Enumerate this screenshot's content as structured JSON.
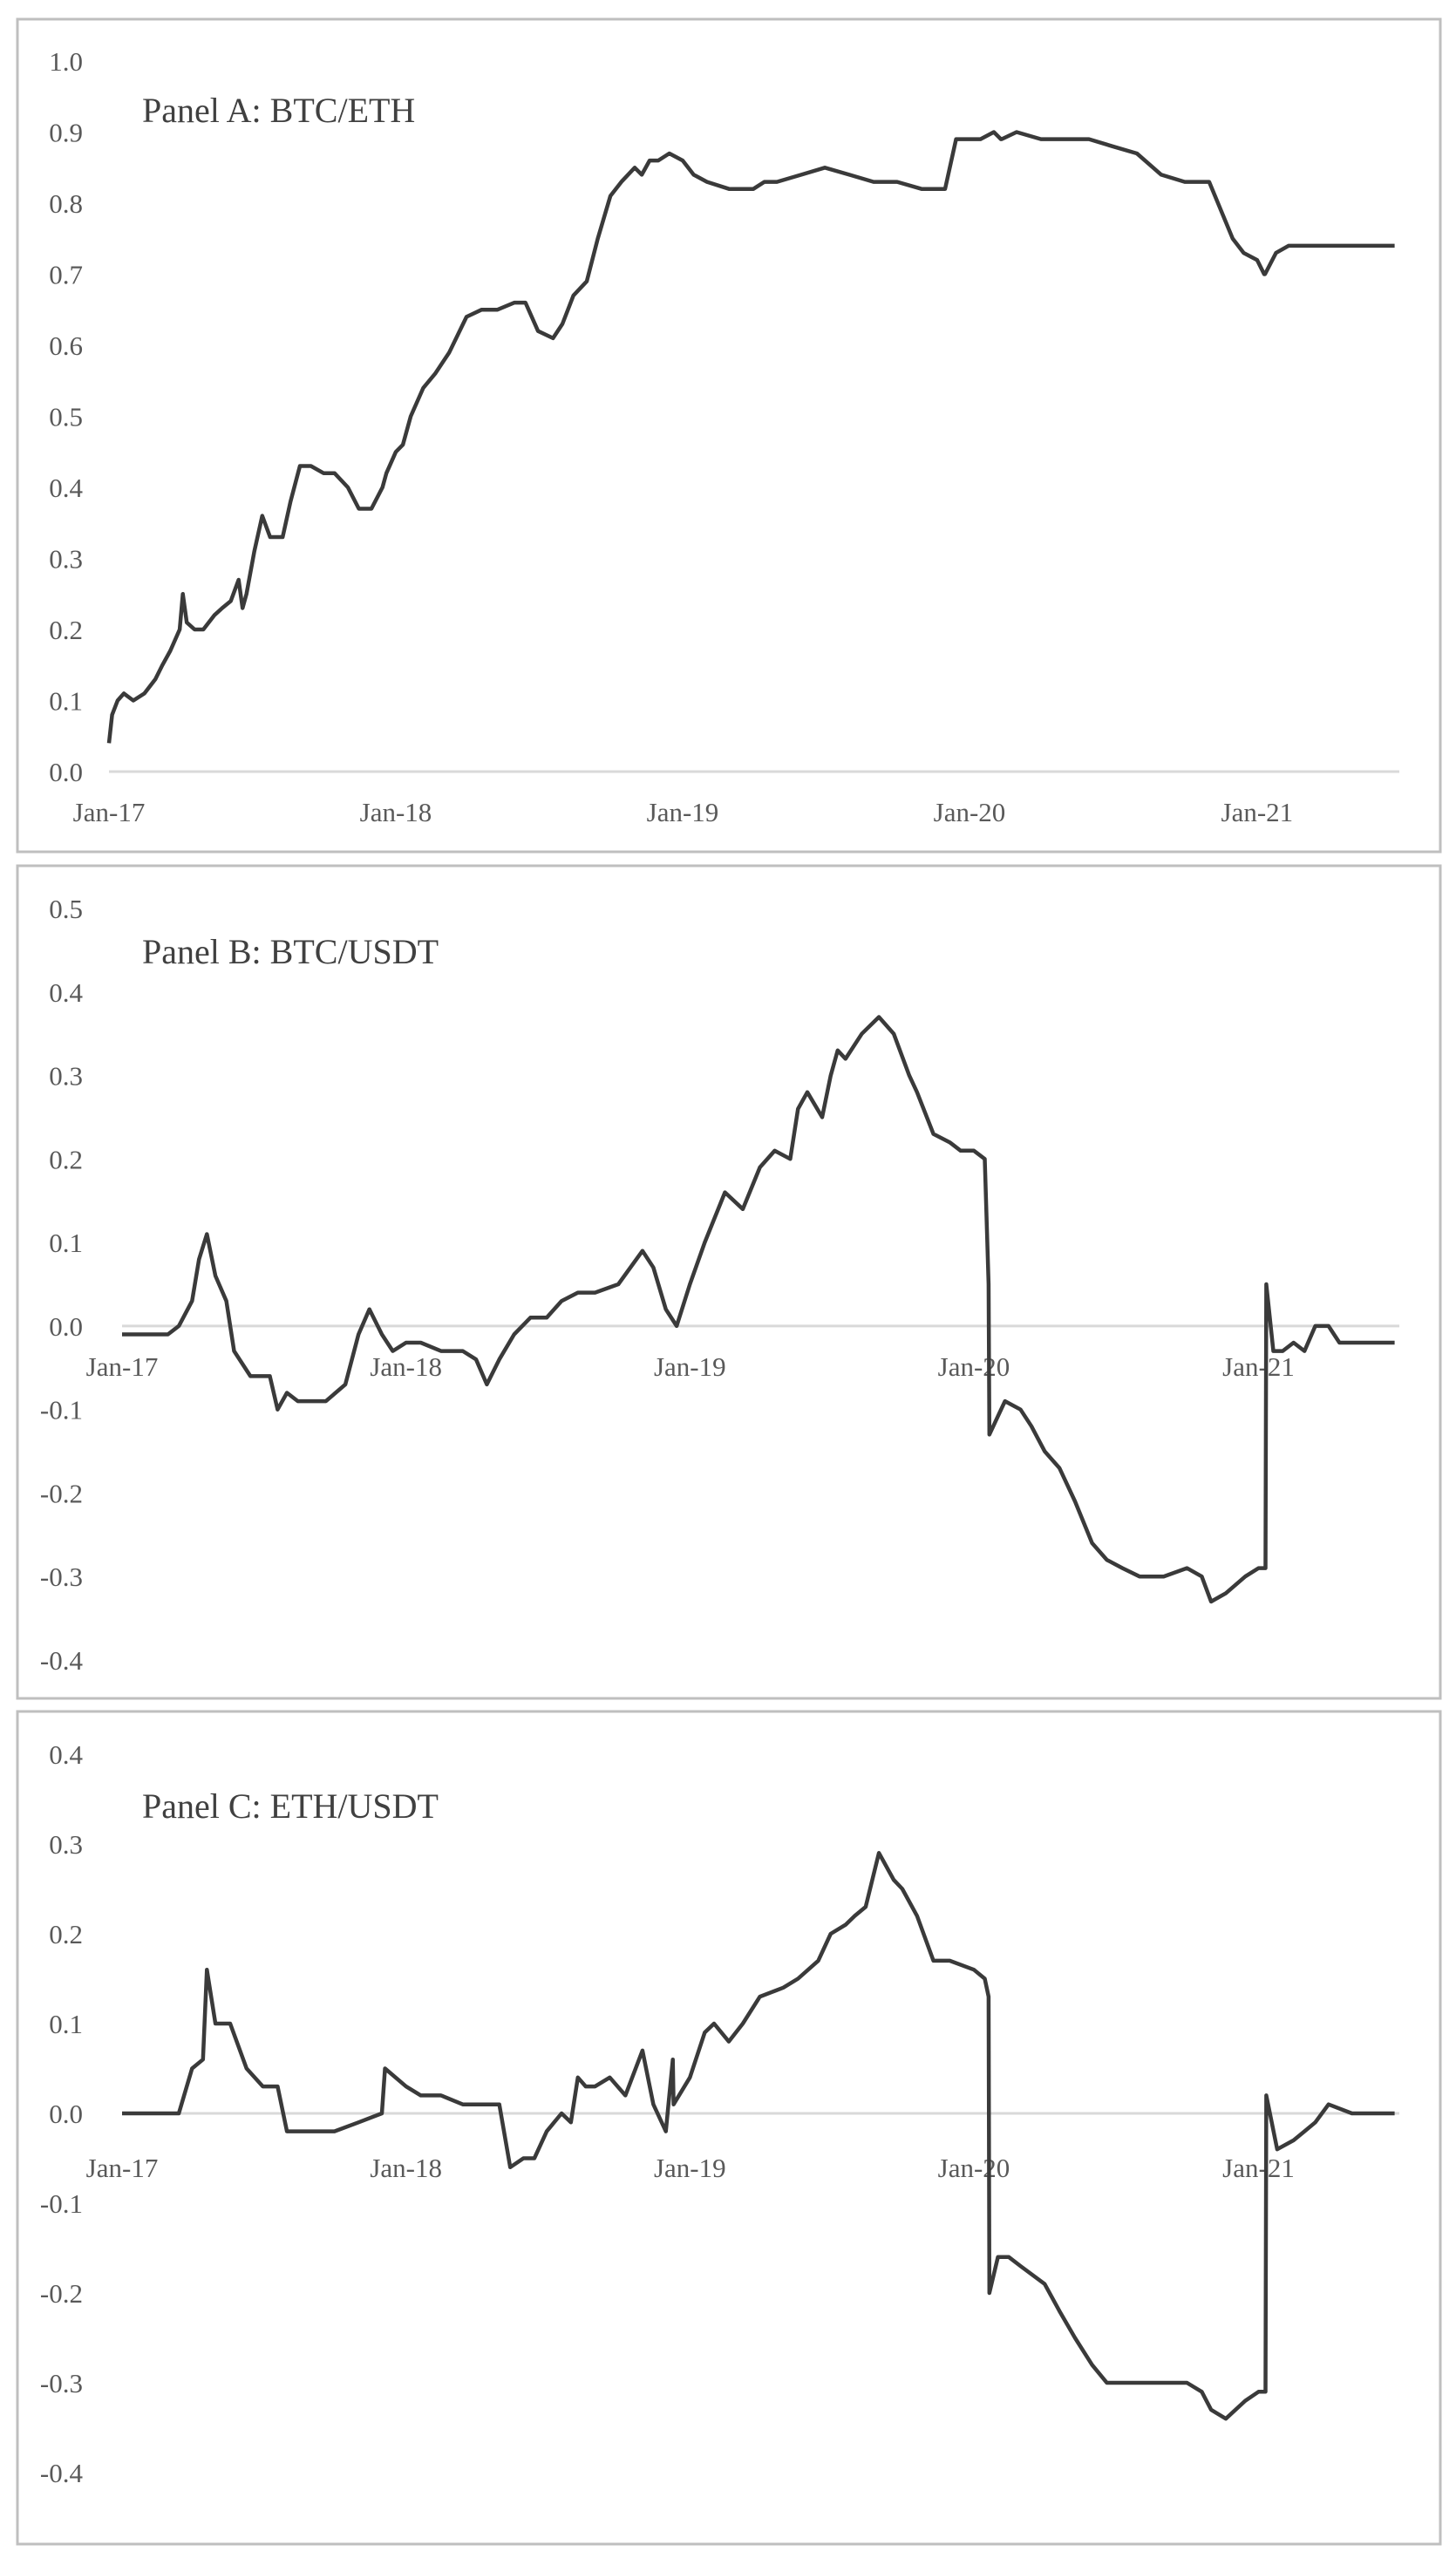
{
  "chart_data": [
    {
      "type": "line",
      "title": "Panel A: BTC/ETH",
      "xlabel": "",
      "ylabel": "",
      "x_ticks": [
        "Jan-17",
        "Jan-18",
        "Jan-19",
        "Jan-20",
        "Jan-21"
      ],
      "y_ticks": [
        "1.0",
        "0.9",
        "0.8",
        "0.7",
        "0.6",
        "0.5",
        "0.4",
        "0.3",
        "0.2",
        "0.1",
        "0.0"
      ],
      "ylim": [
        0.0,
        1.0
      ],
      "xlim": [
        "2017-01-01",
        "2021-07-01"
      ],
      "grid": false,
      "series": [
        {
          "x": [
            "2017-01-01",
            "2017-01-05",
            "2017-01-12",
            "2017-01-20",
            "2017-02-01",
            "2017-02-15",
            "2017-03-01",
            "2017-03-10",
            "2017-03-20",
            "2017-04-01",
            "2017-04-05",
            "2017-04-10",
            "2017-04-20",
            "2017-05-01",
            "2017-05-15",
            "2017-05-25",
            "2017-06-05",
            "2017-06-15",
            "2017-06-20",
            "2017-06-25",
            "2017-07-05",
            "2017-07-15",
            "2017-07-25",
            "2017-08-10",
            "2017-08-20",
            "2017-09-01",
            "2017-09-15",
            "2017-10-01",
            "2017-10-15",
            "2017-11-01",
            "2017-11-15",
            "2017-12-01",
            "2017-12-15",
            "2017-12-20",
            "2018-01-01",
            "2018-01-10",
            "2018-01-20",
            "2018-02-05",
            "2018-02-20",
            "2018-03-10",
            "2018-04-01",
            "2018-04-20",
            "2018-05-10",
            "2018-06-01",
            "2018-06-15",
            "2018-07-01",
            "2018-07-20",
            "2018-08-01",
            "2018-08-15",
            "2018-09-01",
            "2018-09-15",
            "2018-10-01",
            "2018-10-15",
            "2018-11-01",
            "2018-11-10",
            "2018-11-20",
            "2018-12-01",
            "2018-12-15",
            "2019-01-01",
            "2019-01-15",
            "2019-02-01",
            "2019-03-01",
            "2019-04-01",
            "2019-04-15",
            "2019-05-01",
            "2019-06-01",
            "2019-07-01",
            "2019-08-01",
            "2019-09-01",
            "2019-10-01",
            "2019-11-01",
            "2019-12-01",
            "2019-12-15",
            "2020-01-01",
            "2020-01-15",
            "2020-02-01",
            "2020-02-10",
            "2020-02-11",
            "2020-03-01",
            "2020-04-01",
            "2020-05-01",
            "2020-06-01",
            "2020-07-01",
            "2020-08-01",
            "2020-09-01",
            "2020-10-01",
            "2020-11-01",
            "2020-12-01",
            "2020-12-15",
            "2021-01-01",
            "2021-01-10",
            "2021-01-11",
            "2021-01-25",
            "2021-02-10",
            "2021-02-25",
            "2021-03-01",
            "2021-03-15",
            "2021-04-01",
            "2021-05-01",
            "2021-06-01",
            "2021-06-25"
          ],
          "y": [
            0.04,
            0.08,
            0.1,
            0.11,
            0.1,
            0.11,
            0.13,
            0.15,
            0.17,
            0.2,
            0.25,
            0.21,
            0.2,
            0.2,
            0.22,
            0.23,
            0.24,
            0.27,
            0.23,
            0.25,
            0.31,
            0.36,
            0.33,
            0.33,
            0.38,
            0.43,
            0.43,
            0.42,
            0.42,
            0.4,
            0.37,
            0.37,
            0.4,
            0.42,
            0.45,
            0.46,
            0.5,
            0.54,
            0.56,
            0.59,
            0.64,
            0.65,
            0.65,
            0.66,
            0.66,
            0.62,
            0.61,
            0.63,
            0.67,
            0.69,
            0.75,
            0.81,
            0.83,
            0.85,
            0.84,
            0.86,
            0.86,
            0.87,
            0.86,
            0.84,
            0.83,
            0.82,
            0.82,
            0.83,
            0.83,
            0.84,
            0.85,
            0.84,
            0.83,
            0.83,
            0.82,
            0.82,
            0.89,
            0.89,
            0.89,
            0.9,
            0.89,
            0.89,
            0.9,
            0.89,
            0.89,
            0.89,
            0.88,
            0.87,
            0.84,
            0.83,
            0.83,
            0.75,
            0.73,
            0.72,
            0.7,
            0.7,
            0.73,
            0.74,
            0.74,
            0.74,
            0.74,
            0.74,
            0.74,
            0.74,
            0.74
          ]
        }
      ]
    },
    {
      "type": "line",
      "title": "Panel B: BTC/USDT",
      "xlabel": "",
      "ylabel": "",
      "x_ticks": [
        "Jan-17",
        "Jan-18",
        "Jan-19",
        "Jan-20",
        "Jan-21"
      ],
      "y_ticks": [
        "0.5",
        "0.4",
        "0.3",
        "0.2",
        "0.1",
        "0.0",
        "-0.1",
        "-0.2",
        "-0.3",
        "-0.4"
      ],
      "ylim": [
        -0.4,
        0.5
      ],
      "xlim": [
        "2017-01-01",
        "2021-07-01"
      ],
      "grid": false,
      "series": [
        {
          "x": [
            "2017-01-01",
            "2017-03-01",
            "2017-03-15",
            "2017-04-01",
            "2017-04-10",
            "2017-04-20",
            "2017-05-01",
            "2017-05-15",
            "2017-05-25",
            "2017-06-15",
            "2017-07-10",
            "2017-07-20",
            "2017-08-01",
            "2017-08-15",
            "2017-09-01",
            "2017-09-20",
            "2017-10-15",
            "2017-11-01",
            "2017-11-15",
            "2017-12-01",
            "2017-12-15",
            "2018-01-01",
            "2018-01-20",
            "2018-02-15",
            "2018-03-15",
            "2018-04-01",
            "2018-04-15",
            "2018-05-01",
            "2018-05-20",
            "2018-06-10",
            "2018-07-01",
            "2018-07-20",
            "2018-08-10",
            "2018-09-01",
            "2018-10-01",
            "2018-11-01",
            "2018-11-15",
            "2018-12-01",
            "2018-12-15",
            "2019-01-01",
            "2019-01-20",
            "2019-02-15",
            "2019-03-10",
            "2019-04-01",
            "2019-04-20",
            "2019-05-10",
            "2019-05-20",
            "2019-06-01",
            "2019-06-20",
            "2019-07-01",
            "2019-07-10",
            "2019-07-20",
            "2019-08-10",
            "2019-09-01",
            "2019-09-20",
            "2019-10-10",
            "2019-10-20",
            "2019-11-10",
            "2019-12-01",
            "2019-12-15",
            "2020-01-01",
            "2020-01-15",
            "2020-01-20",
            "2020-01-21",
            "2020-02-10",
            "2020-03-01",
            "2020-03-15",
            "2020-04-01",
            "2020-04-20",
            "2020-05-10",
            "2020-06-01",
            "2020-06-20",
            "2020-07-10",
            "2020-08-01",
            "2020-09-01",
            "2020-10-01",
            "2020-10-20",
            "2020-11-01",
            "2020-11-20",
            "2020-12-15",
            "2021-01-01",
            "2021-01-10",
            "2021-01-11",
            "2021-01-20",
            "2021-02-01",
            "2021-02-15",
            "2021-03-01",
            "2021-03-15",
            "2021-04-01",
            "2021-04-15",
            "2021-05-01",
            "2021-05-15",
            "2021-06-01",
            "2021-06-25"
          ],
          "y": [
            -0.01,
            -0.01,
            0.0,
            0.03,
            0.08,
            0.11,
            0.06,
            0.03,
            -0.03,
            -0.06,
            -0.06,
            -0.1,
            -0.08,
            -0.09,
            -0.09,
            -0.09,
            -0.07,
            -0.01,
            0.02,
            -0.01,
            -0.03,
            -0.02,
            -0.02,
            -0.03,
            -0.03,
            -0.04,
            -0.07,
            -0.04,
            -0.01,
            0.01,
            0.01,
            0.03,
            0.04,
            0.04,
            0.05,
            0.09,
            0.07,
            0.02,
            0.0,
            0.05,
            0.1,
            0.16,
            0.14,
            0.19,
            0.21,
            0.2,
            0.26,
            0.28,
            0.25,
            0.3,
            0.33,
            0.32,
            0.35,
            0.37,
            0.35,
            0.3,
            0.28,
            0.23,
            0.22,
            0.21,
            0.21,
            0.2,
            0.05,
            -0.13,
            -0.09,
            -0.1,
            -0.12,
            -0.15,
            -0.17,
            -0.21,
            -0.26,
            -0.28,
            -0.29,
            -0.3,
            -0.3,
            -0.29,
            -0.3,
            -0.33,
            -0.32,
            -0.3,
            -0.29,
            -0.29,
            0.05,
            -0.03,
            -0.03,
            -0.02,
            -0.03,
            0.0,
            0.0,
            -0.02,
            -0.02,
            -0.02,
            -0.02,
            -0.02
          ]
        }
      ]
    },
    {
      "type": "line",
      "title": "Panel C: ETH/USDT",
      "xlabel": "",
      "ylabel": "",
      "x_ticks": [
        "Jan-17",
        "Jan-18",
        "Jan-19",
        "Jan-20",
        "Jan-21"
      ],
      "y_ticks": [
        "0.4",
        "0.3",
        "0.2",
        "0.1",
        "0.0",
        "-0.1",
        "-0.2",
        "-0.3",
        "-0.4"
      ],
      "ylim": [
        -0.4,
        0.4
      ],
      "xlim": [
        "2017-01-01",
        "2021-07-01"
      ],
      "grid": false,
      "series": [
        {
          "x": [
            "2017-01-01",
            "2017-03-01",
            "2017-03-15",
            "2017-04-01",
            "2017-04-15",
            "2017-04-20",
            "2017-05-01",
            "2017-05-20",
            "2017-06-10",
            "2017-07-01",
            "2017-07-20",
            "2017-08-01",
            "2017-08-15",
            "2017-09-01",
            "2017-10-01",
            "2017-11-01",
            "2017-12-01",
            "2017-12-05",
            "2018-01-01",
            "2018-01-20",
            "2018-02-15",
            "2018-03-15",
            "2018-04-15",
            "2018-05-01",
            "2018-05-15",
            "2018-06-01",
            "2018-06-15",
            "2018-07-01",
            "2018-07-20",
            "2018-08-01",
            "2018-08-10",
            "2018-08-20",
            "2018-09-01",
            "2018-09-20",
            "2018-10-10",
            "2018-11-01",
            "2018-11-15",
            "2018-12-01",
            "2018-12-10",
            "2018-12-11",
            "2019-01-01",
            "2019-01-20",
            "2019-02-01",
            "2019-02-20",
            "2019-03-10",
            "2019-04-01",
            "2019-05-01",
            "2019-05-20",
            "2019-06-15",
            "2019-07-01",
            "2019-07-20",
            "2019-08-01",
            "2019-08-15",
            "2019-09-01",
            "2019-09-20",
            "2019-10-01",
            "2019-10-20",
            "2019-11-10",
            "2019-12-01",
            "2020-01-01",
            "2020-01-15",
            "2020-01-20",
            "2020-01-21",
            "2020-02-01",
            "2020-02-15",
            "2020-03-01",
            "2020-04-01",
            "2020-04-20",
            "2020-05-10",
            "2020-06-01",
            "2020-06-20",
            "2020-07-01",
            "2020-08-01",
            "2020-09-01",
            "2020-10-01",
            "2020-10-20",
            "2020-11-01",
            "2020-11-20",
            "2020-12-15",
            "2021-01-01",
            "2021-01-10",
            "2021-01-11",
            "2021-01-25",
            "2021-02-15",
            "2021-03-01",
            "2021-03-15",
            "2021-04-01",
            "2021-05-01",
            "2021-06-01",
            "2021-06-25"
          ],
          "y": [
            0.0,
            0.0,
            0.0,
            0.05,
            0.06,
            0.16,
            0.1,
            0.1,
            0.05,
            0.03,
            0.03,
            -0.02,
            -0.02,
            -0.02,
            -0.02,
            -0.01,
            0.0,
            0.05,
            0.03,
            0.02,
            0.02,
            0.01,
            0.01,
            0.01,
            -0.06,
            -0.05,
            -0.05,
            -0.02,
            0.0,
            -0.01,
            0.04,
            0.03,
            0.03,
            0.04,
            0.02,
            0.07,
            0.01,
            -0.02,
            0.06,
            0.01,
            0.04,
            0.09,
            0.1,
            0.08,
            0.1,
            0.13,
            0.14,
            0.15,
            0.17,
            0.2,
            0.21,
            0.22,
            0.23,
            0.29,
            0.26,
            0.25,
            0.22,
            0.17,
            0.17,
            0.16,
            0.15,
            0.13,
            -0.2,
            -0.16,
            -0.16,
            -0.17,
            -0.19,
            -0.22,
            -0.25,
            -0.28,
            -0.3,
            -0.3,
            -0.3,
            -0.3,
            -0.3,
            -0.31,
            -0.33,
            -0.34,
            -0.32,
            -0.31,
            -0.31,
            0.02,
            -0.04,
            -0.03,
            -0.02,
            -0.01,
            0.01,
            0.0,
            0.0,
            0.0
          ]
        }
      ]
    }
  ]
}
